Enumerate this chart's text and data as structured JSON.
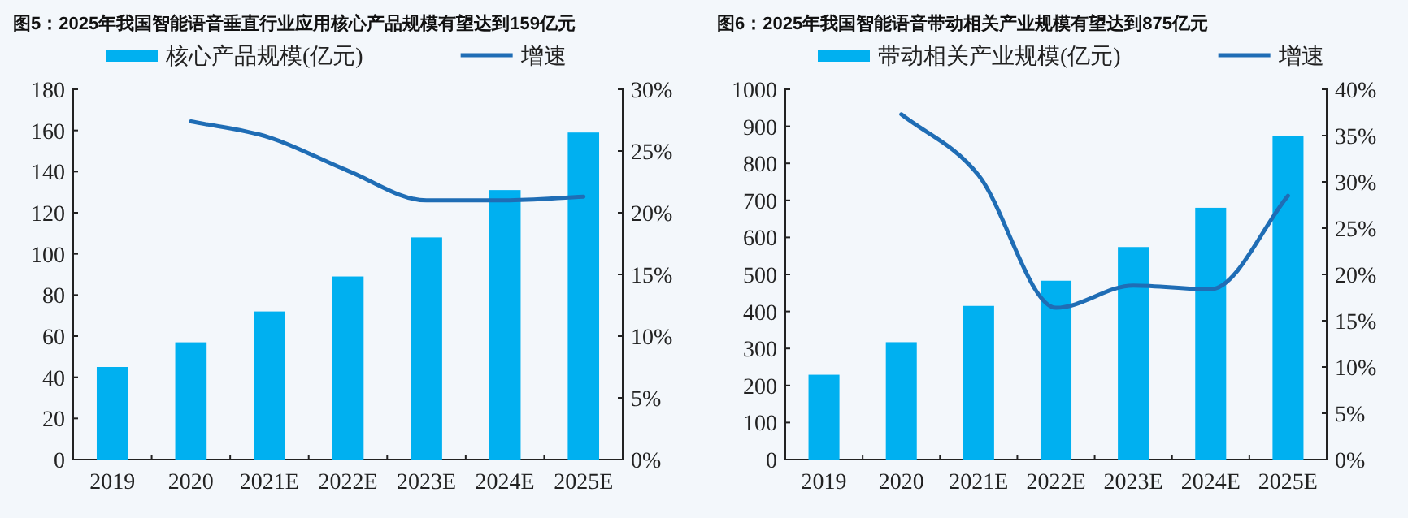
{
  "chart_data": [
    {
      "type": "bar",
      "title": "图5：2025年我国智能语音垂直行业应用核心产品规模有望达到159亿元",
      "categories": [
        "2019",
        "2020",
        "2021E",
        "2022E",
        "2023E",
        "2024E",
        "2025E"
      ],
      "series": [
        {
          "name": "核心产品规模(亿元)",
          "color": "#00b0f0",
          "values": [
            45,
            57,
            72,
            89,
            108,
            131,
            159
          ]
        },
        {
          "name": "增速",
          "type": "line",
          "axis": "y2",
          "color": "#1f6db5",
          "values": [
            null,
            27.4,
            26.1,
            23.4,
            21.0,
            21.0,
            21.3
          ]
        }
      ],
      "ylim": [
        0,
        180
      ],
      "yticks": [
        0,
        20,
        40,
        60,
        80,
        100,
        120,
        140,
        160,
        180
      ],
      "y2lim": [
        0,
        30
      ],
      "y2ticks": [
        {
          "value": 0,
          "label": "0%"
        },
        {
          "value": 5,
          "label": "5%"
        },
        {
          "value": 10,
          "label": "10%"
        },
        {
          "value": 15,
          "label": "15%"
        },
        {
          "value": 20,
          "label": "20%"
        },
        {
          "value": 25,
          "label": "25%"
        },
        {
          "value": 30,
          "label": "30%"
        }
      ],
      "legend": "top",
      "grid": false
    },
    {
      "type": "bar",
      "title": "图6：2025年我国智能语音带动相关产业规模有望达到875亿元",
      "categories": [
        "2019",
        "2020",
        "2021E",
        "2022E",
        "2023E",
        "2024E",
        "2025E"
      ],
      "series": [
        {
          "name": "带动相关产业规模(亿元)",
          "color": "#00b0f0",
          "values": [
            229,
            317,
            415,
            483,
            574,
            680,
            875
          ]
        },
        {
          "name": "增速",
          "type": "line",
          "axis": "y2",
          "color": "#1f6db5",
          "values": [
            null,
            37.3,
            30.7,
            16.4,
            18.8,
            18.4,
            28.5
          ]
        }
      ],
      "ylim": [
        0,
        1000
      ],
      "yticks": [
        0,
        100,
        200,
        300,
        400,
        500,
        600,
        700,
        800,
        900,
        1000
      ],
      "y2lim": [
        0,
        40
      ],
      "y2ticks": [
        {
          "value": 0,
          "label": "0%"
        },
        {
          "value": 5,
          "label": "5%"
        },
        {
          "value": 10,
          "label": "10%"
        },
        {
          "value": 15,
          "label": "15%"
        },
        {
          "value": 20,
          "label": "20%"
        },
        {
          "value": 25,
          "label": "25%"
        },
        {
          "value": 30,
          "label": "30%"
        },
        {
          "value": 35,
          "label": "35%"
        },
        {
          "value": 40,
          "label": "40%"
        }
      ],
      "legend": "top",
      "grid": false
    }
  ]
}
